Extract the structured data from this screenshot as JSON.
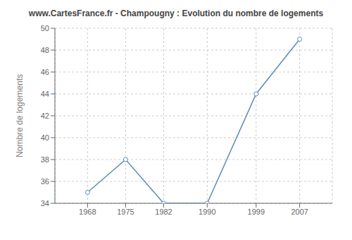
{
  "chart_data": {
    "type": "line",
    "title": "www.CartesFrance.fr - Champougny : Evolution du nombre de logements",
    "ylabel": "Nombre de logements",
    "x": [
      1968,
      1975,
      1982,
      1990,
      1999,
      2007
    ],
    "values": [
      35,
      38,
      34,
      34,
      44,
      49
    ],
    "xlim": [
      1962,
      2013
    ],
    "ylim": [
      34,
      50
    ],
    "xticks": [
      1968,
      1975,
      1982,
      1990,
      1999,
      2007
    ],
    "yticks": [
      34,
      36,
      38,
      40,
      42,
      44,
      46,
      48,
      50
    ],
    "grid": true,
    "color": "#5b8db8",
    "marker": "circle"
  }
}
